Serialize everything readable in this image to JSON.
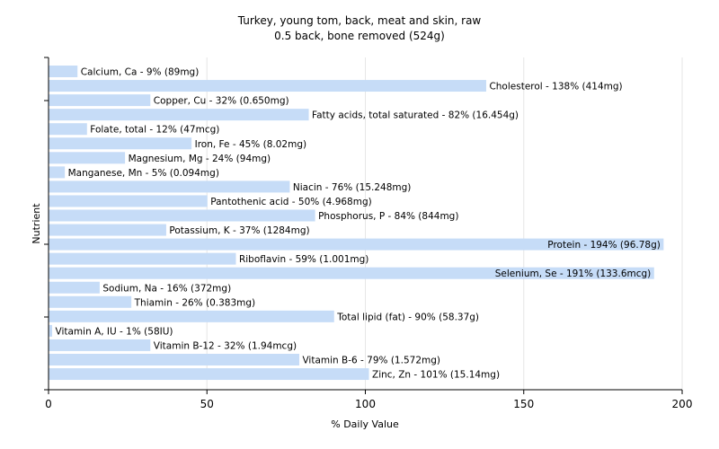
{
  "chart_data": {
    "type": "bar",
    "orientation": "horizontal",
    "title": "Turkey, young tom, back, meat and skin, raw",
    "subtitle": "0.5 back, bone removed (524g)",
    "xlabel": "% Daily Value",
    "ylabel": "Nutrient",
    "xlim": [
      0,
      200
    ],
    "xticks": [
      0,
      50,
      100,
      150,
      200
    ],
    "grid": true,
    "bar_color": "#c6dcf7",
    "categories": [
      "Calcium, Ca",
      "Cholesterol",
      "Copper, Cu",
      "Fatty acids, total saturated",
      "Folate, total",
      "Iron, Fe",
      "Magnesium, Mg",
      "Manganese, Mn",
      "Niacin",
      "Pantothenic acid",
      "Phosphorus, P",
      "Potassium, K",
      "Protein",
      "Riboflavin",
      "Selenium, Se",
      "Sodium, Na",
      "Thiamin",
      "Total lipid (fat)",
      "Vitamin A, IU",
      "Vitamin B-12",
      "Vitamin B-6",
      "Zinc, Zn"
    ],
    "values": [
      9,
      138,
      32,
      82,
      12,
      45,
      24,
      5,
      76,
      50,
      84,
      37,
      194,
      59,
      191,
      16,
      26,
      90,
      1,
      32,
      79,
      101
    ],
    "labels": [
      "Calcium, Ca - 9% (89mg)",
      "Cholesterol - 138% (414mg)",
      "Copper, Cu - 32% (0.650mg)",
      "Fatty acids, total saturated - 82% (16.454g)",
      "Folate, total - 12% (47mcg)",
      "Iron, Fe - 45% (8.02mg)",
      "Magnesium, Mg - 24% (94mg)",
      "Manganese, Mn - 5% (0.094mg)",
      "Niacin - 76% (15.248mg)",
      "Pantothenic acid - 50% (4.968mg)",
      "Phosphorus, P - 84% (844mg)",
      "Potassium, K - 37% (1284mg)",
      "Protein - 194% (96.78g)",
      "Riboflavin - 59% (1.001mg)",
      "Selenium, Se - 191% (133.6mcg)",
      "Sodium, Na - 16% (372mg)",
      "Thiamin - 26% (0.383mg)",
      "Total lipid (fat) - 90% (58.37g)",
      "Vitamin A, IU - 1% (58IU)",
      "Vitamin B-12 - 32% (1.94mcg)",
      "Vitamin B-6 - 79% (1.572mg)",
      "Zinc, Zn - 101% (15.14mg)"
    ]
  }
}
